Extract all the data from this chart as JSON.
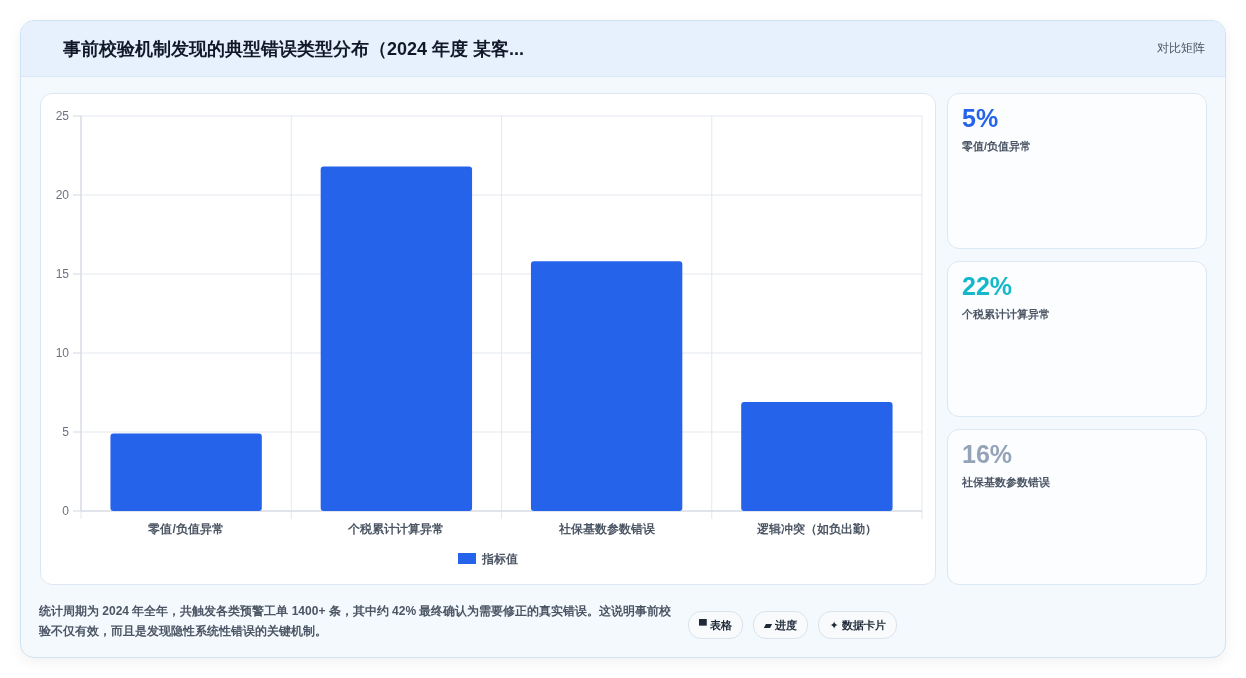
{
  "chart_data": [
    {
      "type": "bar",
      "title": "事前校验机制发现的典型错误类型分布（2024 年度 某客...",
      "categories": [
        "零值/负值异常",
        "个税累计计算异常",
        "社保基数参数错误",
        "逻辑冲突（如负出勤）"
      ],
      "series": [
        {
          "name": "指标值",
          "color": "#2563eb",
          "values": [
            4.9,
            21.8,
            15.8,
            6.9
          ]
        }
      ],
      "ylim": [
        0,
        25
      ],
      "yticks": [
        0,
        5,
        10,
        15,
        20,
        25
      ],
      "grid": true,
      "legend": "bottom",
      "annotations": [
        "对比矩阵",
        "统计周期为 2024 年全年，共触发各类预警工单 1400+ 条，其中约 42% 最终确认为需要修正的真实错误。这说明事前校验不仅有效，而且是发现隐性系统性错误的关键机制。",
        "▀ 表格",
        "▰ 进度",
        "✦ 数据卡片"
      ]
    },
    {
      "type": "other",
      "title": "5%",
      "subtitle": "零值/负值异常",
      "color": "#2563eb"
    },
    {
      "type": "other",
      "title": "22%",
      "subtitle": "个税累计计算异常",
      "color": "#14b8c9"
    },
    {
      "type": "other",
      "title": "16%",
      "subtitle": "社保基数参数错误",
      "color": "#94a3b8"
    }
  ]
}
